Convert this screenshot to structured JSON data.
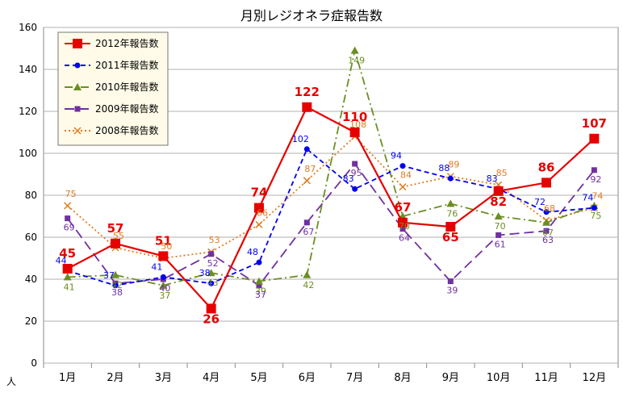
{
  "chart_data": {
    "type": "line",
    "title": "月別レジオネラ症報告数",
    "ylabel": "人",
    "ylim": [
      0,
      160
    ],
    "yticks": [
      0,
      20,
      40,
      60,
      80,
      100,
      120,
      140,
      160
    ],
    "categories": [
      "1月",
      "2月",
      "3月",
      "4月",
      "5月",
      "6月",
      "7月",
      "8月",
      "9月",
      "10月",
      "11月",
      "12月"
    ],
    "grid": true,
    "legend_position": "top-left",
    "series": [
      {
        "name": "2012年報告数",
        "values": [
          45,
          57,
          51,
          26,
          74,
          122,
          110,
          67,
          65,
          82,
          86,
          107
        ],
        "color": "#e60000",
        "style": "solid",
        "marker": "square"
      },
      {
        "name": "2011年報告数",
        "values": [
          44,
          37,
          41,
          38,
          48,
          102,
          83,
          94,
          88,
          83,
          72,
          74
        ],
        "color": "#0000ee",
        "style": "dash",
        "marker": "circle"
      },
      {
        "name": "2010年報告数",
        "values": [
          41,
          42,
          37,
          43,
          39,
          42,
          149,
          70,
          76,
          70,
          67,
          75
        ],
        "color": "#6b8e23",
        "style": "dashdot",
        "marker": "triangle"
      },
      {
        "name": "2009年報告数",
        "values": [
          69,
          38,
          40,
          52,
          37,
          67,
          95,
          64,
          39,
          61,
          63,
          92
        ],
        "color": "#7030a0",
        "style": "longdash",
        "marker": "square"
      },
      {
        "name": "2008年報告数",
        "values": [
          75,
          55,
          50,
          53,
          66,
          87,
          108,
          84,
          89,
          85,
          68,
          74
        ],
        "color": "#e07b20",
        "style": "dot",
        "marker": "x"
      }
    ]
  }
}
